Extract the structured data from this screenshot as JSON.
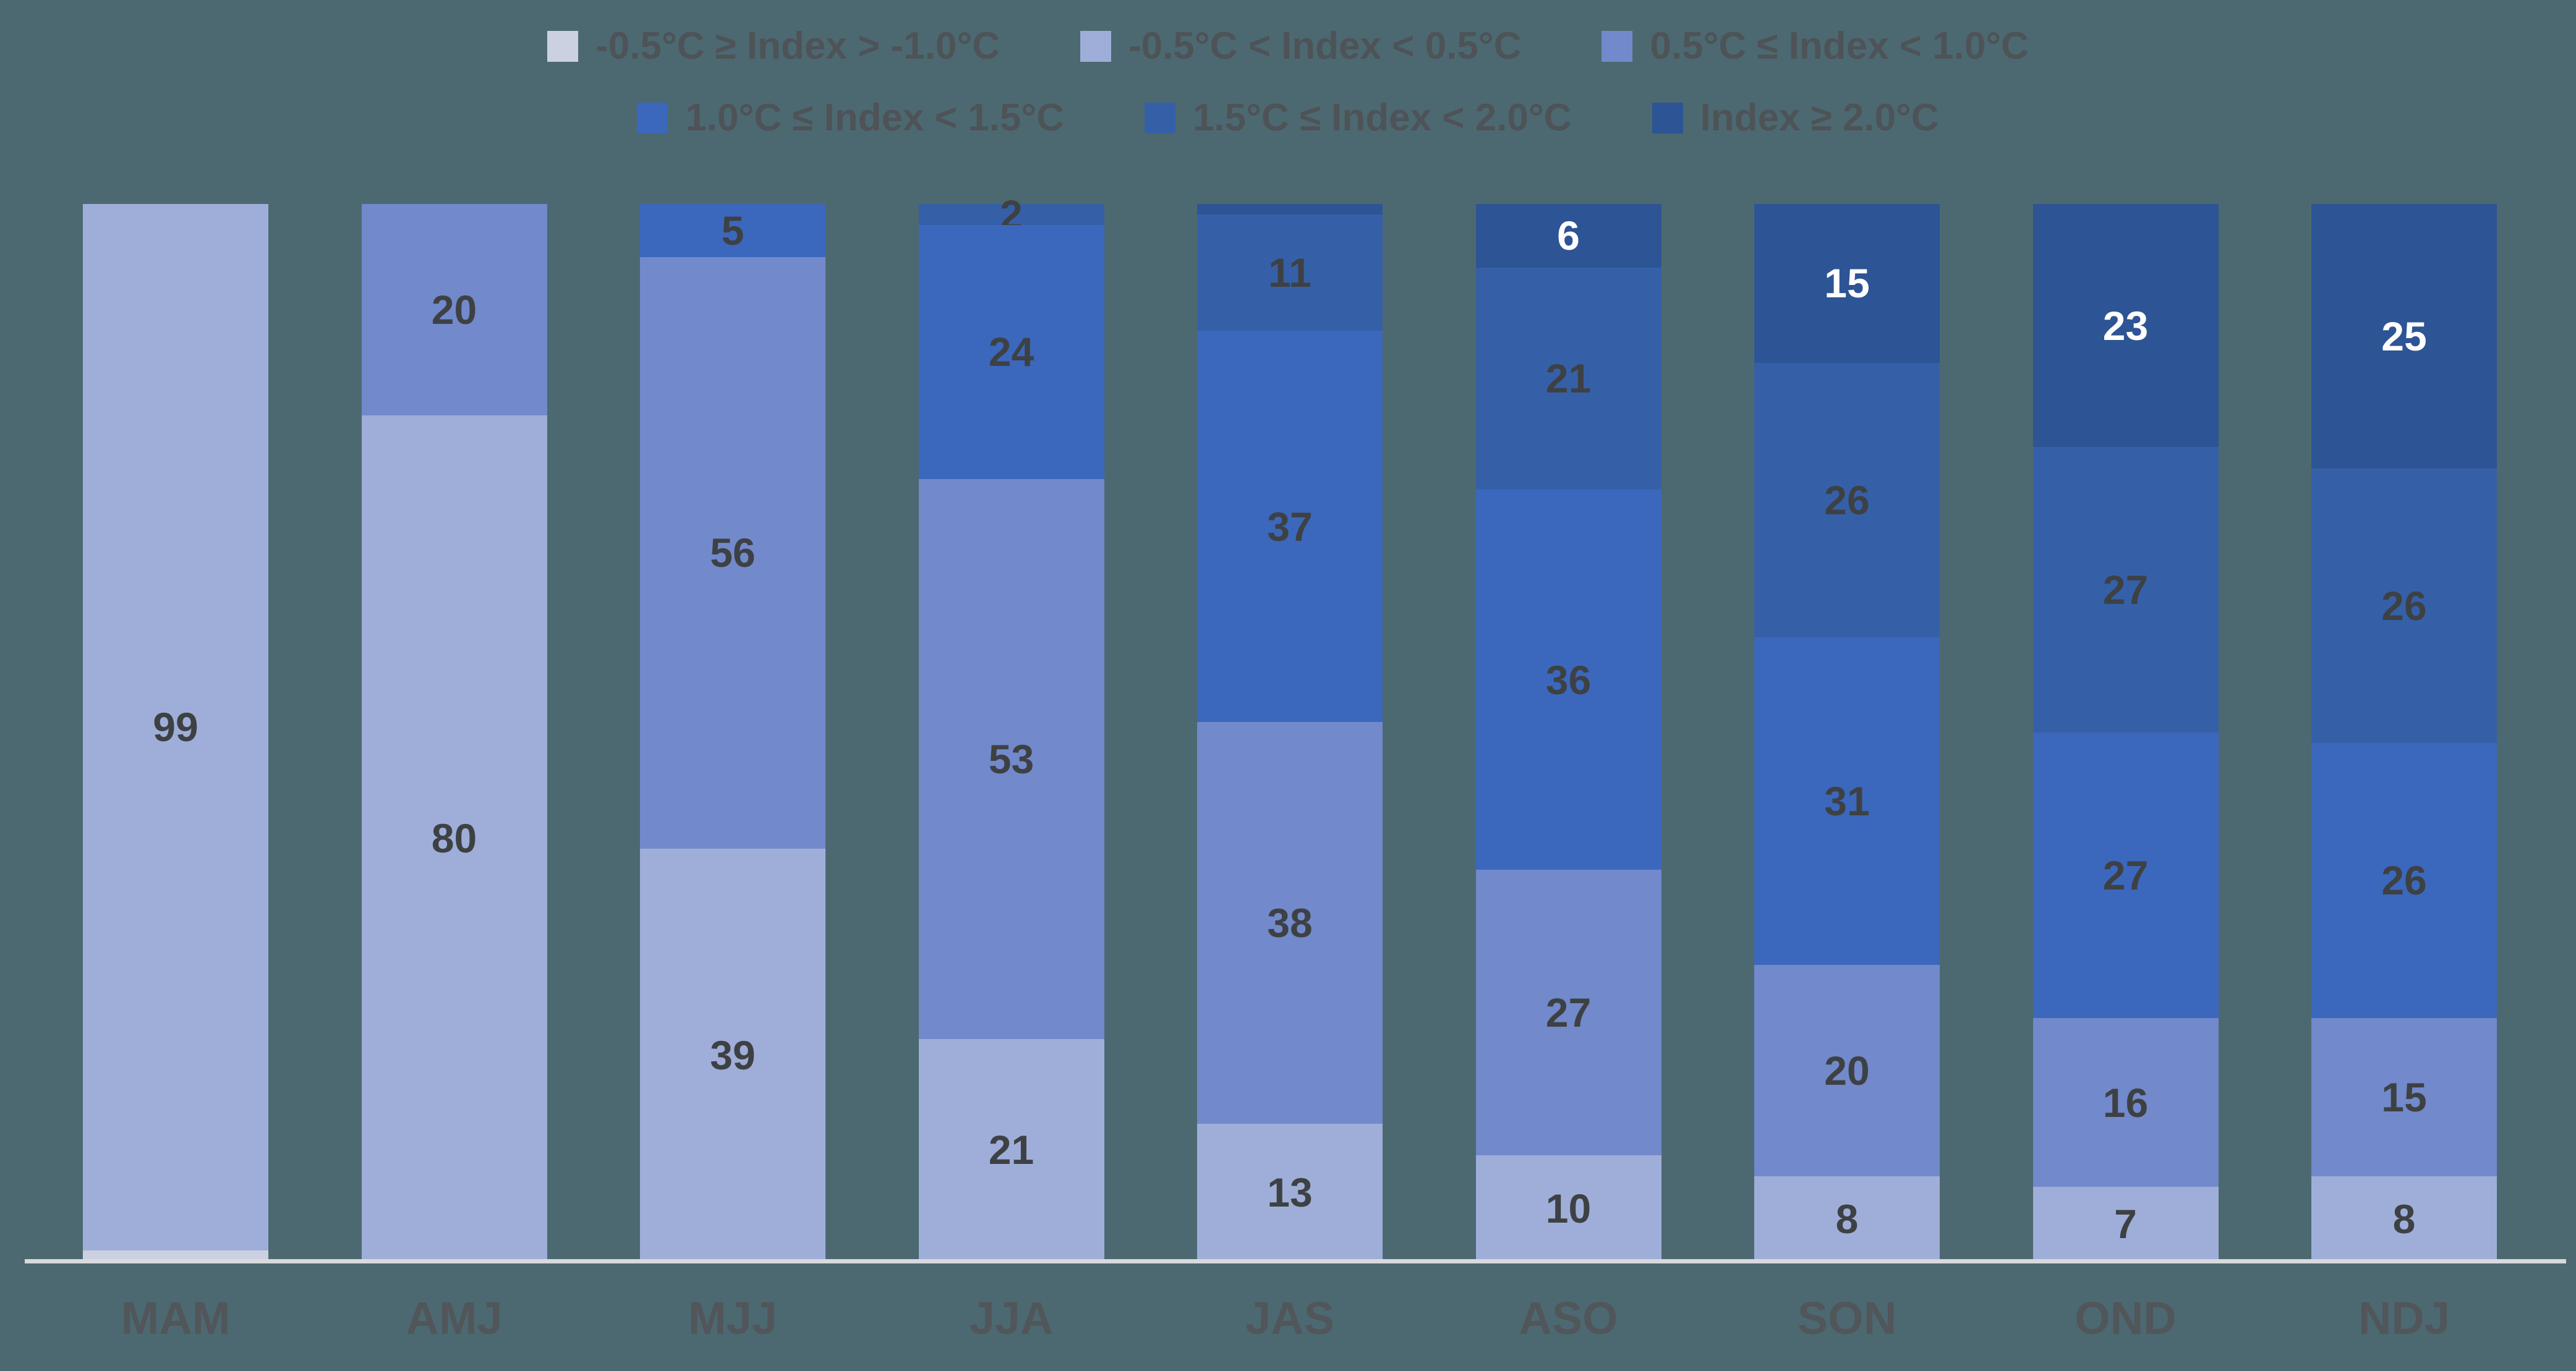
{
  "page": {
    "background": "#4C6971"
  },
  "chart_data": {
    "type": "bar",
    "subtype": "stacked-100-percent-column",
    "title": "",
    "xlabel": "",
    "ylabel": "",
    "ylim": [
      0,
      100
    ],
    "grid": false,
    "legend_position": "top",
    "legend_rows": 2,
    "legend_items_per_row": 3,
    "categories": [
      "MAM",
      "AMJ",
      "MJJ",
      "JJA",
      "JAS",
      "ASO",
      "SON",
      "OND",
      "NDJ"
    ],
    "series": [
      {
        "name": "-0.5°C ≥ Index > -1.0°C",
        "color": "#CBD1E0",
        "label_style": "dark",
        "values": [
          1,
          0,
          0,
          0,
          0,
          0,
          0,
          0,
          0
        ]
      },
      {
        "name": "-0.5°C < Index < 0.5°C",
        "color": "#9FAED9",
        "label_style": "dark",
        "values": [
          99,
          80,
          39,
          21,
          13,
          10,
          8,
          7,
          8
        ]
      },
      {
        "name": "0.5°C ≤ Index < 1.0°C",
        "color": "#7289CB",
        "label_style": "dark",
        "values": [
          0,
          20,
          56,
          53,
          38,
          27,
          20,
          16,
          15
        ]
      },
      {
        "name": "1.0°C ≤ Index < 1.5°C",
        "color": "#3B68BC",
        "label_style": "dark",
        "values": [
          0,
          0,
          5,
          24,
          37,
          36,
          31,
          27,
          26
        ]
      },
      {
        "name": "1.5°C ≤ Index < 2.0°C",
        "color": "#3560A8",
        "label_style": "dark",
        "values": [
          0,
          0,
          0,
          2,
          11,
          21,
          26,
          27,
          26
        ]
      },
      {
        "name": "Index ≥ 2.0°C",
        "color": "#2D5494",
        "label_style": "light",
        "values": [
          0,
          0,
          0,
          0,
          1,
          6,
          15,
          23,
          25
        ]
      }
    ],
    "data_labels": {
      "min_value_to_show": 2,
      "dark_color": "#3E4143",
      "light_color": "#FFFFFF"
    },
    "axis_line_color": "#D8DADE",
    "axis_text_color": "#51565A",
    "legend_text_color": "#4E5357"
  }
}
